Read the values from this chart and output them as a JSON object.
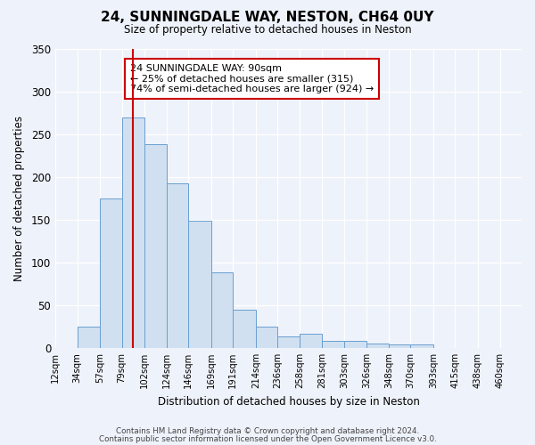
{
  "title": "24, SUNNINGDALE WAY, NESTON, CH64 0UY",
  "subtitle": "Size of property relative to detached houses in Neston",
  "xlabel": "Distribution of detached houses by size in Neston",
  "ylabel": "Number of detached properties",
  "bar_labels": [
    "12sqm",
    "34sqm",
    "57sqm",
    "79sqm",
    "102sqm",
    "124sqm",
    "146sqm",
    "169sqm",
    "191sqm",
    "214sqm",
    "236sqm",
    "258sqm",
    "281sqm",
    "303sqm",
    "326sqm",
    "348sqm",
    "370sqm",
    "393sqm",
    "415sqm",
    "438sqm",
    "460sqm"
  ],
  "bar_values": [
    0,
    25,
    175,
    270,
    238,
    193,
    149,
    89,
    45,
    25,
    13,
    17,
    8,
    8,
    5,
    4,
    4,
    0,
    0,
    0,
    0
  ],
  "bar_color": "#d0e0f0",
  "bar_edge_color": "#6a9fd0",
  "vline_x": 90,
  "annotation_lines": [
    "24 SUNNINGDALE WAY: 90sqm",
    "← 25% of detached houses are smaller (315)",
    "74% of semi-detached houses are larger (924) →"
  ],
  "annotation_box_color": "#ffffff",
  "annotation_box_edge_color": "#cc0000",
  "vline_color": "#cc0000",
  "ylim": [
    0,
    350
  ],
  "yticks": [
    0,
    50,
    100,
    150,
    200,
    250,
    300,
    350
  ],
  "footnote1": "Contains HM Land Registry data © Crown copyright and database right 2024.",
  "footnote2": "Contains public sector information licensed under the Open Government Licence v3.0.",
  "background_color": "#eef2fa",
  "grid_color": "#ffffff"
}
